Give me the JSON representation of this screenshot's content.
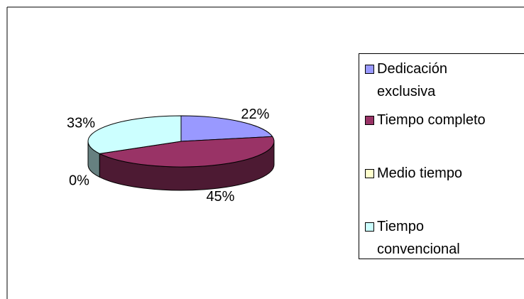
{
  "chart_data": {
    "type": "pie3d",
    "categories": [
      "Dedicación exclusiva",
      "Tiempo completo",
      "Medio tiempo",
      "Tiempo convencional"
    ],
    "values": [
      22,
      45,
      0,
      33
    ],
    "value_labels": [
      "22%",
      "45%",
      "0%",
      "33%"
    ],
    "colors": [
      "#9999ff",
      "#993366",
      "#ffffcc",
      "#ccffff"
    ],
    "legend": "right"
  }
}
